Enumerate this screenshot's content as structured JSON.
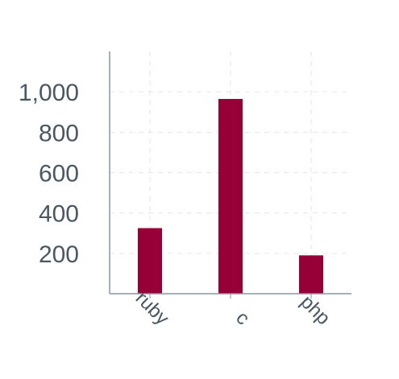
{
  "chart_data": {
    "type": "bar",
    "categories": [
      "ruby",
      "c",
      "php"
    ],
    "values": [
      325,
      965,
      190
    ],
    "ylim": [
      0,
      1200
    ],
    "yticks": [
      200,
      400,
      600,
      800,
      1000
    ],
    "ytick_labels": [
      "200",
      "400",
      "600",
      "800",
      "1,000"
    ],
    "title": "",
    "xlabel": "",
    "ylabel": "",
    "grid": true,
    "bar_color": "#960036",
    "axis_color": "#8a96a0",
    "label_color": "#4a5862"
  }
}
